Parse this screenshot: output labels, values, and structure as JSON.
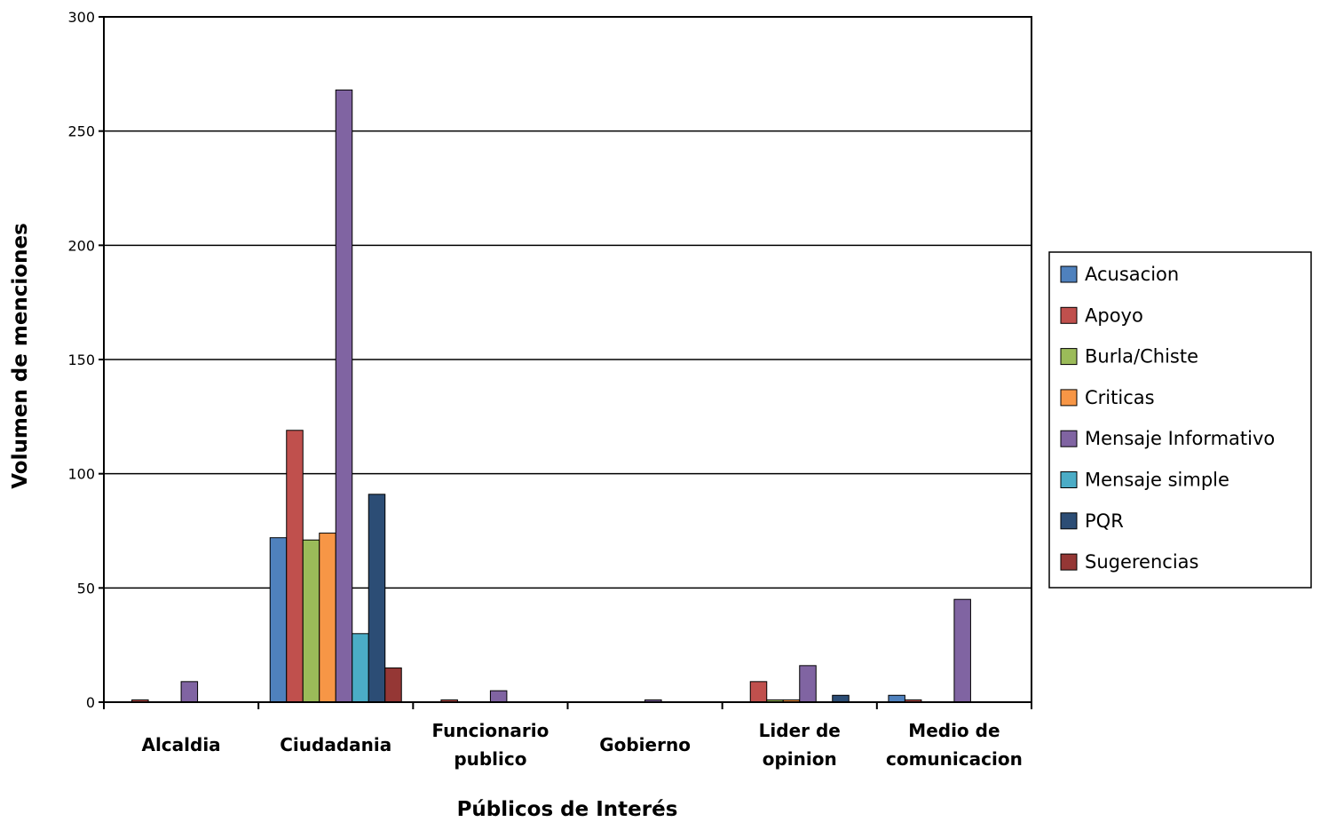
{
  "chart_data": {
    "type": "bar",
    "xlabel": "Públicos de Interés",
    "ylabel": "Volumen de menciones",
    "ylim": [
      0,
      300
    ],
    "yticks": [
      0,
      50,
      100,
      150,
      200,
      250,
      300
    ],
    "grid": true,
    "legend_position": "right",
    "categories": [
      [
        "Alcaldia"
      ],
      [
        "Ciudadania"
      ],
      [
        "Funcionario",
        "publico"
      ],
      [
        "Gobierno"
      ],
      [
        "Lider de",
        "opinion"
      ],
      [
        "Medio de",
        "comunicacion"
      ]
    ],
    "series": [
      {
        "name": "Acusacion",
        "color": "#4F81BD",
        "values": [
          0,
          72,
          0,
          0,
          0,
          3
        ]
      },
      {
        "name": "Apoyo",
        "color": "#C0504D",
        "values": [
          1,
          119,
          1,
          0,
          9,
          1
        ]
      },
      {
        "name": "Burla/Chiste",
        "color": "#9BBB59",
        "values": [
          0,
          71,
          0,
          0,
          1,
          0
        ]
      },
      {
        "name": "Criticas",
        "color": "#F79646",
        "values": [
          0,
          74,
          0,
          0,
          1,
          0
        ]
      },
      {
        "name": "Mensaje Informativo",
        "color": "#8064A2",
        "values": [
          9,
          268,
          5,
          1,
          16,
          45
        ]
      },
      {
        "name": "Mensaje simple",
        "color": "#4BACC6",
        "values": [
          0,
          30,
          0,
          0,
          0,
          0
        ]
      },
      {
        "name": "PQR",
        "color": "#2C4D75",
        "values": [
          0,
          91,
          0,
          0,
          3,
          0
        ]
      },
      {
        "name": "Sugerencias",
        "color": "#953735",
        "values": [
          0,
          15,
          0,
          0,
          0,
          0
        ]
      }
    ]
  }
}
